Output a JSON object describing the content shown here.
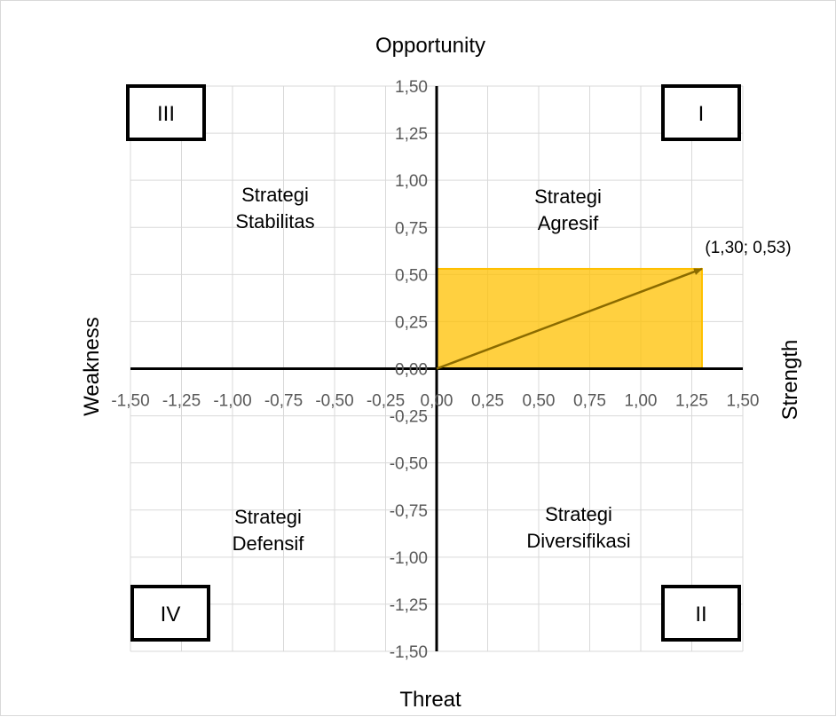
{
  "chart_data": {
    "type": "scatter",
    "title": "",
    "axis_titles": {
      "top": "Opportunity",
      "bottom": "Threat",
      "left": "Weakness",
      "right": "Strength"
    },
    "xlim": [
      -1.5,
      1.5
    ],
    "ylim": [
      -1.5,
      1.5
    ],
    "x_ticks": [
      "-1,50",
      "-1,25",
      "-1,00",
      "-0,75",
      "-0,50",
      "-0,25",
      "0,00",
      "0,25",
      "0,50",
      "0,75",
      "1,00",
      "1,25",
      "1,50"
    ],
    "x_tick_values": [
      -1.5,
      -1.25,
      -1.0,
      -0.75,
      -0.5,
      -0.25,
      0,
      0.25,
      0.5,
      0.75,
      1.0,
      1.25,
      1.5
    ],
    "y_ticks": [
      "1,50",
      "1,25",
      "1,00",
      "0,75",
      "0,50",
      "0,25",
      "0,00",
      "-0,25",
      "-0,50",
      "-0,75",
      "-1,00",
      "-1,25",
      "-1,50"
    ],
    "y_tick_values": [
      1.5,
      1.25,
      1.0,
      0.75,
      0.5,
      0.25,
      0,
      -0.25,
      -0.5,
      -0.75,
      -1.0,
      -1.25,
      -1.5
    ],
    "grid": true,
    "point": {
      "x": 1.3,
      "y": 0.53,
      "label": "(1,30; 0,53)"
    },
    "highlight_rect": {
      "x": [
        0,
        1.3
      ],
      "y": [
        0,
        0.53
      ],
      "color": "#ffc000"
    },
    "arrow_color": "#8b6b00",
    "quadrants": [
      {
        "id": "I",
        "label": "I",
        "strategy": [
          "Strategi",
          "Agresif"
        ]
      },
      {
        "id": "II",
        "label": "II",
        "strategy": [
          "Strategi",
          "Diversifikasi"
        ]
      },
      {
        "id": "III",
        "label": "III",
        "strategy": [
          "Strategi",
          "Stabilitas"
        ]
      },
      {
        "id": "IV",
        "label": "IV",
        "strategy": [
          "Strategi",
          "Defensif"
        ]
      }
    ]
  }
}
